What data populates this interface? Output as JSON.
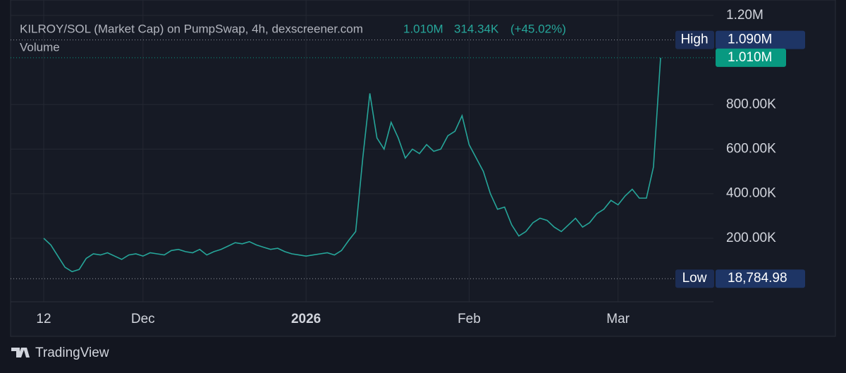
{
  "chart_data": {
    "type": "line",
    "title": "KILROY/SOL (Market Cap) on PumpSwap, 4h, dexscreener.com",
    "header_values": [
      "1.010M",
      "314.34K",
      "(+45.02%)"
    ],
    "volume_label": "Volume",
    "brand": "TradingView",
    "categories": [
      "12",
      null,
      null,
      null,
      null,
      null,
      null,
      null,
      null,
      null,
      null,
      null,
      null,
      null,
      "Dec",
      null,
      null,
      null,
      null,
      null,
      null,
      null,
      null,
      null,
      null,
      null,
      null,
      null,
      null,
      null,
      null,
      null,
      null,
      null,
      null,
      null,
      null,
      "2026",
      null,
      null,
      null,
      null,
      null,
      null,
      null,
      null,
      null,
      null,
      null,
      null,
      null,
      null,
      null,
      null,
      null,
      null,
      null,
      null,
      null,
      null,
      "Feb",
      null,
      null,
      null,
      null,
      null,
      null,
      null,
      null,
      null,
      null,
      null,
      null,
      null,
      null,
      null,
      null,
      null,
      null,
      null,
      null,
      "Mar",
      null,
      null,
      null,
      null,
      null,
      null
    ],
    "series": [
      {
        "name": "KILROY/SOL",
        "color": "#26a69a",
        "values": [
          200000,
          170000,
          120000,
          70000,
          50000,
          60000,
          110000,
          130000,
          125000,
          135000,
          120000,
          105000,
          125000,
          130000,
          120000,
          135000,
          130000,
          125000,
          145000,
          150000,
          140000,
          135000,
          150000,
          125000,
          140000,
          150000,
          165000,
          180000,
          175000,
          185000,
          170000,
          160000,
          150000,
          155000,
          140000,
          130000,
          125000,
          120000,
          125000,
          130000,
          135000,
          125000,
          145000,
          190000,
          230000,
          560000,
          850000,
          650000,
          600000,
          720000,
          650000,
          560000,
          600000,
          580000,
          620000,
          590000,
          600000,
          660000,
          680000,
          750000,
          620000,
          560000,
          500000,
          400000,
          330000,
          340000,
          260000,
          210000,
          230000,
          270000,
          290000,
          280000,
          250000,
          230000,
          260000,
          290000,
          250000,
          270000,
          310000,
          330000,
          370000,
          350000,
          390000,
          420000,
          380000,
          380000,
          520000,
          1010000
        ]
      }
    ],
    "ylim": [
      -85000,
      1250000
    ],
    "yticks": [
      {
        "value": 200000,
        "label": "200.00K"
      },
      {
        "value": 400000,
        "label": "400.00K"
      },
      {
        "value": 600000,
        "label": "600.00K"
      },
      {
        "value": 800000,
        "label": "800.00K"
      },
      {
        "value": 1200000,
        "label": "1.20M"
      }
    ],
    "grid": true,
    "markers": [
      {
        "name": "High",
        "value": 1090000,
        "value_label": "1.090M"
      },
      {
        "name": "Low",
        "value": 18784.98,
        "value_label": "18,784.98"
      }
    ],
    "last": {
      "value": 1010000,
      "value_label": "1.010M",
      "color": "#089981"
    }
  }
}
